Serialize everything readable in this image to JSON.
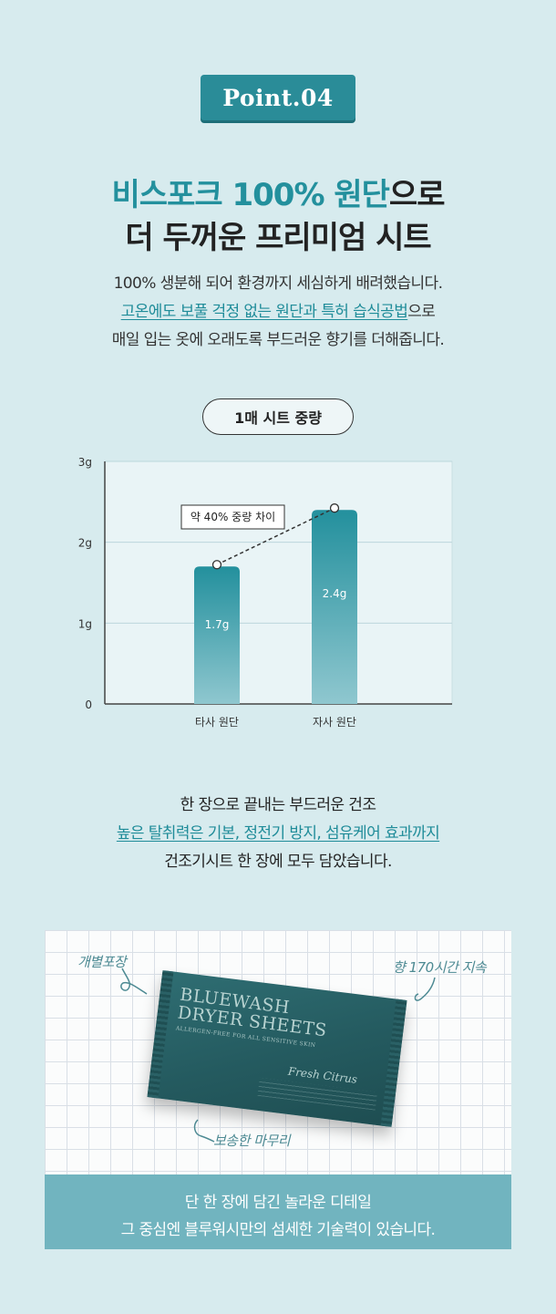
{
  "badge": "Point.04",
  "headline": {
    "line1_highlight": "비스포크 100% 원단",
    "line1_rest": "으로",
    "line2": "더 두꺼운 프리미엄 시트"
  },
  "description": {
    "line1": "100% 생분해 되어 환경까지 세심하게 배려했습니다.",
    "line2_highlight": "고온에도 보풀 걱정 없는 원단과 특허 습식공법",
    "line2_rest": "으로",
    "line3": "매일 입는 옷에 오래도록 부드러운 향기를 더해줍니다."
  },
  "chart_label": "1매 시트 중량",
  "chart_data": {
    "type": "bar",
    "categories": [
      "타사 원단",
      "자사 원단"
    ],
    "values": [
      1.7,
      2.4
    ],
    "value_labels": [
      "1.7g",
      "2.4g"
    ],
    "ylim": [
      0,
      3
    ],
    "y_ticks": [
      {
        "value": 0,
        "label": "0"
      },
      {
        "value": 1,
        "label": "1g"
      },
      {
        "value": 2,
        "label": "2g"
      },
      {
        "value": 3,
        "label": "3g"
      }
    ],
    "grid": true,
    "annotation": "약 40% 중량 차이",
    "colors": {
      "bar_top": "#23909d",
      "bar_bottom": "#8fc7cf",
      "plot_bg": "#e9f4f6",
      "grid": "#bcd7dc"
    }
  },
  "benefit": {
    "line1": "한 장으로 끝내는 부드러운 건조",
    "line2": "높은 탈취력은 기본, 정전기 방지, 섬유케어 효과까지",
    "line3": "건조기시트 한 장에 모두 담았습니다."
  },
  "product": {
    "brand_line1": "BLUEWASH",
    "brand_line2": "DRYER SHEETS",
    "subtitle": "ALLERGEN-FREE FOR ALL SENSITIVE SKIN",
    "scent": "Fresh Citrus",
    "labels": [
      "개별포장",
      "향 170시간 지속",
      "보송한 마무리"
    ]
  },
  "caption": {
    "line1": "단 한 장에 담긴 놀라운 디테일",
    "line2": "그 중심엔 블루워시만의 섬세한 기술력이 있습니다."
  },
  "colors": {
    "page_bg": "#d7ebee",
    "accent": "#23909d",
    "caption_bg": "#71b4bf"
  }
}
